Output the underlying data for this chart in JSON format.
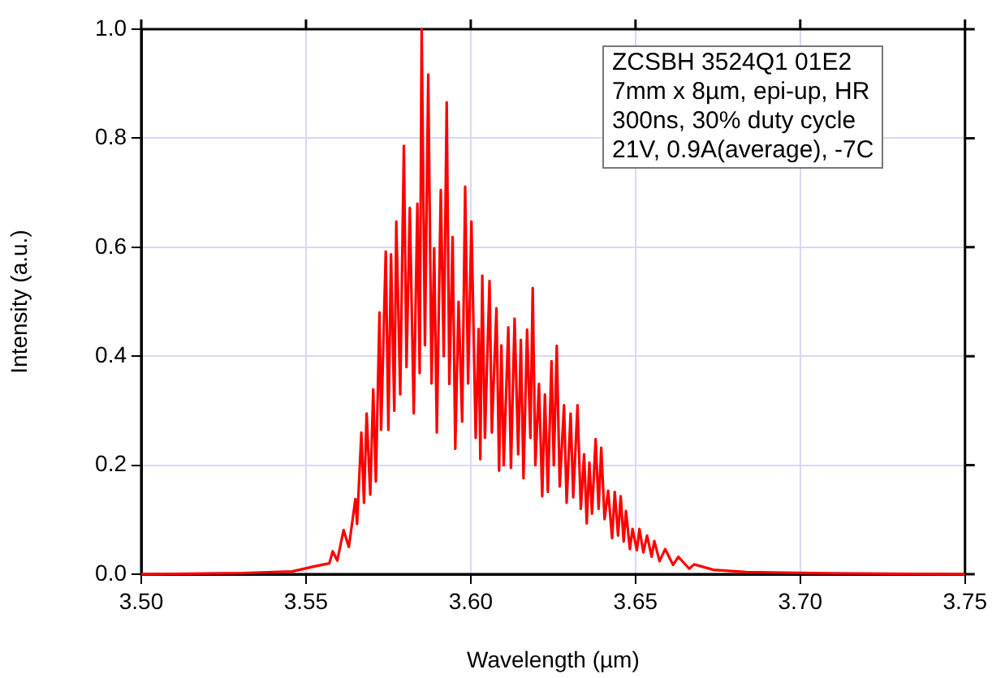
{
  "chart_data": {
    "type": "line",
    "xlabel": "Wavelength (µm)",
    "ylabel": "Intensity (a.u.)",
    "annotations": [
      "ZCSBH 3524Q1 01E2",
      "7mm x 8µm, epi-up, HR",
      "300ns, 30% duty cycle",
      "21V, 0.9A(average), -7C"
    ],
    "xlim": [
      3.5,
      3.75
    ],
    "xticks": [
      {
        "value": 3.5,
        "label": "3.50"
      },
      3.55,
      {
        "value": 3.6,
        "label": "3.60"
      },
      3.65,
      {
        "value": 3.7,
        "label": "3.70"
      },
      3.75
    ],
    "ylim": [
      0,
      1
    ],
    "yticks": [
      {
        "value": 0,
        "label": "0.0"
      },
      0.2,
      0.4,
      0.6,
      0.8,
      {
        "value": 1,
        "label": "1.0"
      }
    ],
    "grid": true,
    "marker": "none",
    "line_style": "solid",
    "x": [
      3.5,
      3.531,
      3.5458,
      3.5531,
      3.5571,
      3.5581,
      3.5595,
      3.5614,
      3.563,
      3.565,
      3.5655,
      3.5668,
      3.5676,
      3.5684,
      3.5695,
      3.5704,
      3.5712,
      3.5723,
      3.5728,
      3.5742,
      3.575,
      3.5758,
      3.5768,
      3.5774,
      3.5786,
      3.5797,
      3.5805,
      3.5815,
      3.5827,
      3.5838,
      3.5845,
      3.5851,
      3.5861,
      3.5871,
      3.5881,
      3.5889,
      3.5897,
      3.5909,
      3.5918,
      3.5927,
      3.5935,
      3.5945,
      3.5953,
      3.5963,
      3.5974,
      3.5983,
      3.5992,
      3.6002,
      3.6015,
      3.6024,
      3.6029,
      3.6035,
      3.6043,
      3.6057,
      3.6064,
      3.6078,
      3.6086,
      3.6093,
      3.61,
      3.6114,
      3.6122,
      3.6133,
      3.6144,
      3.6152,
      3.616,
      3.6171,
      3.6181,
      3.6188,
      3.6196,
      3.6207,
      3.6217,
      3.6225,
      3.6234,
      3.6245,
      3.6252,
      3.6261,
      3.627,
      3.6283,
      3.6291,
      3.6303,
      3.6311,
      3.6324,
      3.6334,
      3.6344,
      3.6352,
      3.636,
      3.6368,
      3.6379,
      3.6388,
      3.6396,
      3.6406,
      3.6417,
      3.6429,
      3.6437,
      3.6447,
      3.6455,
      3.6464,
      3.6471,
      3.6483,
      3.6491,
      3.6504,
      3.6512,
      3.6524,
      3.6535,
      3.6549,
      3.6557,
      3.6573,
      3.659,
      3.6614,
      3.663,
      3.6663,
      3.6678,
      3.6737,
      3.6836,
      3.7032,
      3.75
    ],
    "series": [
      {
        "color": "#ff0000",
        "values": [
          0,
          0.002,
          0.005,
          0.015,
          0.02,
          0.042,
          0.025,
          0.081,
          0.05,
          0.138,
          0.092,
          0.26,
          0.131,
          0.295,
          0.146,
          0.339,
          0.17,
          0.48,
          0.265,
          0.592,
          0.265,
          0.587,
          0.3,
          0.647,
          0.33,
          0.786,
          0.38,
          0.672,
          0.295,
          0.68,
          0.369,
          1.0,
          0.42,
          0.917,
          0.35,
          0.598,
          0.26,
          0.705,
          0.4,
          0.866,
          0.349,
          0.619,
          0.23,
          0.5,
          0.28,
          0.711,
          0.35,
          0.647,
          0.25,
          0.45,
          0.211,
          0.548,
          0.25,
          0.538,
          0.26,
          0.488,
          0.19,
          0.42,
          0.2,
          0.453,
          0.195,
          0.469,
          0.22,
          0.43,
          0.176,
          0.449,
          0.25,
          0.525,
          0.2,
          0.349,
          0.143,
          0.33,
          0.151,
          0.391,
          0.2,
          0.419,
          0.161,
          0.31,
          0.131,
          0.295,
          0.141,
          0.31,
          0.12,
          0.22,
          0.093,
          0.205,
          0.111,
          0.248,
          0.12,
          0.232,
          0.101,
          0.153,
          0.066,
          0.151,
          0.071,
          0.143,
          0.06,
          0.116,
          0.046,
          0.083,
          0.044,
          0.083,
          0.04,
          0.071,
          0.032,
          0.061,
          0.024,
          0.046,
          0.017,
          0.032,
          0.01,
          0.018,
          0.008,
          0.004,
          0.002,
          0
        ]
      }
    ]
  }
}
